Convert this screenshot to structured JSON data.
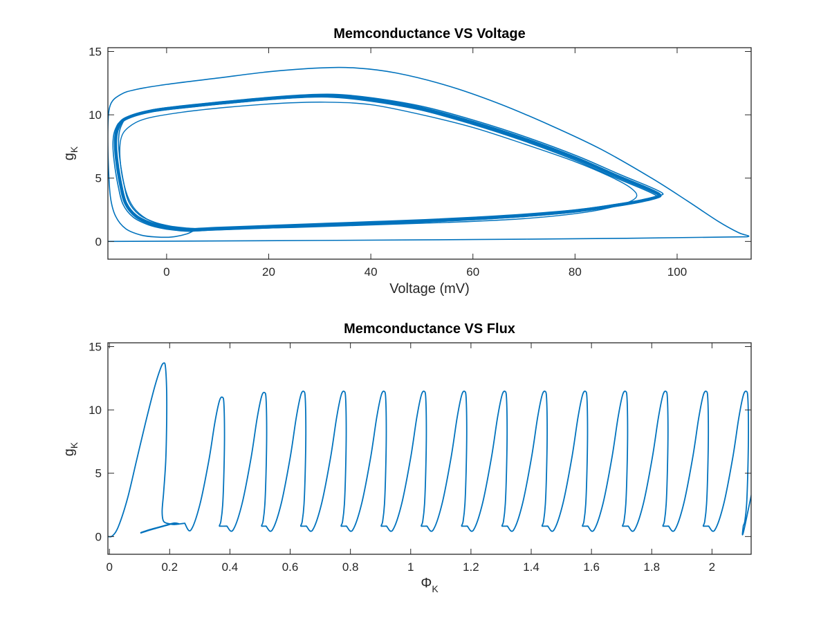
{
  "chart_data": [
    {
      "type": "line",
      "title": "Memconductance VS Voltage",
      "xlabel": "Voltage (mV)",
      "ylabel": {
        "main": "g",
        "sub": "K"
      },
      "xlim": [
        -11.5,
        114.5
      ],
      "ylim": [
        -1.4,
        15.3
      ],
      "xticks": [
        0,
        20,
        40,
        60,
        80,
        100
      ],
      "yticks": [
        0,
        5,
        10,
        15
      ],
      "grid": false,
      "series": [
        {
          "color": "#0072BD",
          "description_points": "initial transient loop",
          "points": [
            [
              -11.5,
              0.0
            ],
            [
              5,
              0.03
            ],
            [
              30,
              0.08
            ],
            [
              60,
              0.15
            ],
            [
              90,
              0.25
            ],
            [
              110,
              0.35
            ],
            [
              114,
              0.4
            ],
            [
              112,
              0.7
            ],
            [
              108,
              1.6
            ],
            [
              102,
              3.2
            ],
            [
              95,
              5.0
            ],
            [
              85,
              7.3
            ],
            [
              75,
              9.2
            ],
            [
              65,
              10.9
            ],
            [
              55,
              12.3
            ],
            [
              45,
              13.3
            ],
            [
              37,
              13.7
            ],
            [
              30,
              13.7
            ],
            [
              20,
              13.4
            ],
            [
              10,
              12.9
            ],
            [
              0,
              12.4
            ],
            [
              -6,
              12.0
            ],
            [
              -9,
              11.6
            ],
            [
              -11,
              10.8
            ],
            [
              -11.5,
              9.0
            ],
            [
              -11.4,
              6.0
            ],
            [
              -11,
              3.5
            ],
            [
              -10,
              2.0
            ],
            [
              -8,
              1.0
            ],
            [
              -5,
              0.5
            ],
            [
              -2,
              0.35
            ],
            [
              1,
              0.35
            ],
            [
              4,
              0.6
            ],
            [
              5.5,
              0.9
            ]
          ]
        },
        {
          "color": "#0072BD",
          "description_points": "limit cycle (repeated)",
          "points": [
            [
              5,
              0.9
            ],
            [
              10,
              1.0
            ],
            [
              20,
              1.15
            ],
            [
              30,
              1.3
            ],
            [
              40,
              1.45
            ],
            [
              50,
              1.6
            ],
            [
              60,
              1.8
            ],
            [
              70,
              2.05
            ],
            [
              80,
              2.4
            ],
            [
              88,
              2.85
            ],
            [
              93,
              3.2
            ],
            [
              96,
              3.5
            ],
            [
              96.5,
              3.7
            ],
            [
              94,
              4.2
            ],
            [
              88,
              5.2
            ],
            [
              80,
              6.6
            ],
            [
              70,
              8.1
            ],
            [
              60,
              9.4
            ],
            [
              50,
              10.5
            ],
            [
              40,
              11.2
            ],
            [
              32,
              11.5
            ],
            [
              24,
              11.4
            ],
            [
              15,
              11.1
            ],
            [
              5,
              10.7
            ],
            [
              -3,
              10.3
            ],
            [
              -8,
              9.7
            ],
            [
              -9.5,
              9.0
            ],
            [
              -10,
              8.0
            ],
            [
              -9.8,
              6.5
            ],
            [
              -9,
              4.5
            ],
            [
              -8,
              3.0
            ],
            [
              -6,
              2.0
            ],
            [
              -3,
              1.4
            ],
            [
              0,
              1.1
            ],
            [
              3,
              0.95
            ],
            [
              5,
              0.9
            ]
          ]
        },
        {
          "color": "#0072BD",
          "description_points": "inner limit cycle",
          "points": [
            [
              5,
              0.9
            ],
            [
              12,
              1.0
            ],
            [
              25,
              1.1
            ],
            [
              40,
              1.3
            ],
            [
              55,
              1.5
            ],
            [
              70,
              1.8
            ],
            [
              82,
              2.3
            ],
            [
              89,
              2.9
            ],
            [
              92,
              3.5
            ],
            [
              91,
              4.2
            ],
            [
              87,
              5.1
            ],
            [
              80,
              6.3
            ],
            [
              70,
              7.7
            ],
            [
              60,
              9.0
            ],
            [
              50,
              10.0
            ],
            [
              40,
              10.8
            ],
            [
              31,
              11.0
            ],
            [
              22,
              10.9
            ],
            [
              12,
              10.6
            ],
            [
              3,
              10.2
            ],
            [
              -4,
              9.7
            ],
            [
              -7.5,
              9.0
            ],
            [
              -9,
              8.0
            ],
            [
              -9,
              6.0
            ],
            [
              -8,
              4.0
            ],
            [
              -6.5,
              2.7
            ],
            [
              -4,
              1.8
            ],
            [
              -1,
              1.3
            ],
            [
              2,
              1.0
            ],
            [
              5,
              0.9
            ]
          ]
        }
      ]
    },
    {
      "type": "line",
      "title": "Memconductance VS Flux",
      "xlabel": {
        "main": "Φ",
        "sub": "K"
      },
      "ylabel": {
        "main": "g",
        "sub": "K"
      },
      "xlim": [
        -0.005,
        2.13
      ],
      "ylim": [
        -1.4,
        15.3
      ],
      "xticks": [
        0,
        0.2,
        0.4,
        0.6,
        0.8,
        1,
        1.2,
        1.4,
        1.6,
        1.8,
        2
      ],
      "yticks": [
        0,
        5,
        10,
        15
      ],
      "grid": false,
      "series": [
        {
          "color": "#0072BD",
          "first_spike": [
            [
              -0.005,
              0.0
            ],
            [
              0.01,
              0.05
            ],
            [
              0.03,
              0.8
            ],
            [
              0.06,
              3.0
            ],
            [
              0.09,
              6.0
            ],
            [
              0.12,
              9.0
            ],
            [
              0.15,
              11.8
            ],
            [
              0.17,
              13.3
            ],
            [
              0.18,
              13.7
            ],
            [
              0.186,
              13.4
            ],
            [
              0.19,
              11.5
            ],
            [
              0.19,
              9.0
            ],
            [
              0.187,
              6.0
            ],
            [
              0.18,
              3.5
            ],
            [
              0.175,
              2.0
            ],
            [
              0.18,
              1.2
            ],
            [
              0.2,
              1.0
            ],
            [
              0.215,
              0.95
            ],
            [
              0.235,
              1.0
            ],
            [
              0.25,
              1.05
            ]
          ],
          "start_segment": [
            [
              0.105,
              0.3
            ],
            [
              0.13,
              0.5
            ],
            [
              0.16,
              0.7
            ],
            [
              0.19,
              0.9
            ],
            [
              0.215,
              1.05
            ],
            [
              0.23,
              1.0
            ]
          ],
          "spike_shape_offsets": [
            [
              0,
              0
            ],
            [
              0.02,
              0.5
            ],
            [
              0.05,
              2.5
            ],
            [
              0.08,
              6.0
            ],
            [
              0.1,
              9.0
            ],
            [
              0.115,
              10.7
            ],
            [
              0.125,
              11.0
            ],
            [
              0.13,
              10.5
            ],
            [
              0.132,
              8.0
            ],
            [
              0.13,
              5.0
            ],
            [
              0.126,
              2.5
            ],
            [
              0.12,
              1.2
            ],
            [
              0.115,
              0.85
            ],
            [
              0.12,
              0.82
            ]
          ],
          "spike_starts": [
            0.25,
            0.39,
            0.52,
            0.654,
            0.787,
            0.92,
            1.054,
            1.188,
            1.321,
            1.455,
            1.588,
            1.722,
            1.856,
            1.989
          ],
          "spike_peaks": [
            11.0,
            11.4,
            11.5,
            11.5,
            11.5,
            11.5,
            11.5,
            11.5,
            11.5,
            11.5,
            11.5,
            11.5,
            11.5,
            11.5
          ]
        }
      ]
    }
  ]
}
